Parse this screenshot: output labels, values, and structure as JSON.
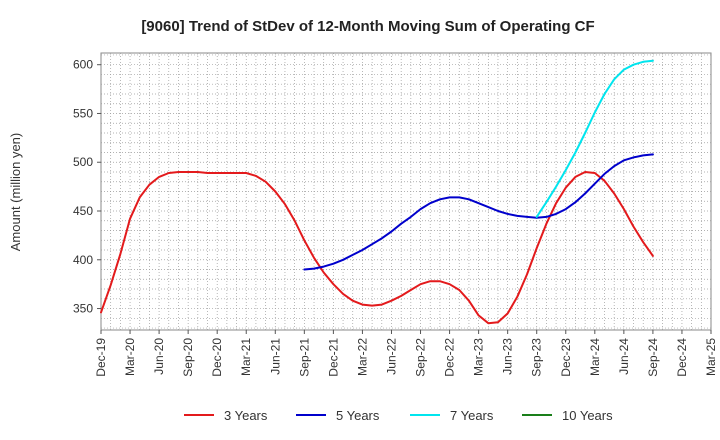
{
  "chart_data": {
    "type": "line",
    "title": "[9060]  Trend of StDev of 12-Month Moving Sum of Operating CF",
    "xlabel": "",
    "ylabel": "Amount (million yen)",
    "ylim": [
      328,
      612
    ],
    "yticks": [
      350,
      400,
      450,
      500,
      550,
      600
    ],
    "grid": true,
    "legend_position": "bottom",
    "x_ticks": [
      "Dec-19",
      "Mar-20",
      "Jun-20",
      "Sep-20",
      "Dec-20",
      "Mar-21",
      "Jun-21",
      "Sep-21",
      "Dec-21",
      "Mar-22",
      "Jun-22",
      "Sep-22",
      "Dec-22",
      "Mar-23",
      "Jun-23",
      "Sep-23",
      "Dec-23",
      "Mar-24",
      "Jun-24",
      "Sep-24",
      "Dec-24",
      "Mar-25"
    ],
    "series": [
      {
        "name": "3 Years",
        "color": "#e31a1c",
        "points": [
          [
            "Dec-19",
            346
          ],
          [
            "Jan-20",
            374
          ],
          [
            "Feb-20",
            406
          ],
          [
            "Mar-20",
            442
          ],
          [
            "Apr-20",
            464
          ],
          [
            "May-20",
            477
          ],
          [
            "Jun-20",
            485
          ],
          [
            "Jul-20",
            489
          ],
          [
            "Aug-20",
            490
          ],
          [
            "Sep-20",
            490
          ],
          [
            "Oct-20",
            490
          ],
          [
            "Nov-20",
            489
          ],
          [
            "Dec-20",
            489
          ],
          [
            "Jan-21",
            489
          ],
          [
            "Feb-21",
            489
          ],
          [
            "Mar-21",
            489
          ],
          [
            "Apr-21",
            486
          ],
          [
            "May-21",
            480
          ],
          [
            "Jun-21",
            470
          ],
          [
            "Jul-21",
            457
          ],
          [
            "Aug-21",
            440
          ],
          [
            "Sep-21",
            420
          ],
          [
            "Oct-21",
            402
          ],
          [
            "Nov-21",
            387
          ],
          [
            "Dec-21",
            375
          ],
          [
            "Jan-22",
            365
          ],
          [
            "Feb-22",
            358
          ],
          [
            "Mar-22",
            354
          ],
          [
            "Apr-22",
            353
          ],
          [
            "May-22",
            354
          ],
          [
            "Jun-22",
            358
          ],
          [
            "Jul-22",
            363
          ],
          [
            "Aug-22",
            369
          ],
          [
            "Sep-22",
            375
          ],
          [
            "Oct-22",
            378
          ],
          [
            "Nov-22",
            378
          ],
          [
            "Dec-22",
            375
          ],
          [
            "Jan-23",
            369
          ],
          [
            "Feb-23",
            358
          ],
          [
            "Mar-23",
            343
          ],
          [
            "Apr-23",
            335
          ],
          [
            "May-23",
            336
          ],
          [
            "Jun-23",
            345
          ],
          [
            "Jul-23",
            362
          ],
          [
            "Aug-23",
            385
          ],
          [
            "Sep-23",
            412
          ],
          [
            "Oct-23",
            437
          ],
          [
            "Nov-23",
            458
          ],
          [
            "Dec-23",
            474
          ],
          [
            "Jan-24",
            485
          ],
          [
            "Feb-24",
            490
          ],
          [
            "Mar-24",
            489
          ],
          [
            "Apr-24",
            481
          ],
          [
            "May-24",
            468
          ],
          [
            "Jun-24",
            452
          ],
          [
            "Jul-24",
            434
          ],
          [
            "Aug-24",
            418
          ],
          [
            "Sep-24",
            404
          ]
        ]
      },
      {
        "name": "5 Years",
        "color": "#0000cc",
        "points": [
          [
            "Sep-21",
            390
          ],
          [
            "Oct-21",
            391
          ],
          [
            "Nov-21",
            393
          ],
          [
            "Dec-21",
            396
          ],
          [
            "Jan-22",
            400
          ],
          [
            "Feb-22",
            405
          ],
          [
            "Mar-22",
            410
          ],
          [
            "Apr-22",
            416
          ],
          [
            "May-22",
            422
          ],
          [
            "Jun-22",
            429
          ],
          [
            "Jul-22",
            437
          ],
          [
            "Aug-22",
            444
          ],
          [
            "Sep-22",
            452
          ],
          [
            "Oct-22",
            458
          ],
          [
            "Nov-22",
            462
          ],
          [
            "Dec-22",
            464
          ],
          [
            "Jan-23",
            464
          ],
          [
            "Feb-23",
            462
          ],
          [
            "Mar-23",
            458
          ],
          [
            "Apr-23",
            454
          ],
          [
            "May-23",
            450
          ],
          [
            "Jun-23",
            447
          ],
          [
            "Jul-23",
            445
          ],
          [
            "Aug-23",
            444
          ],
          [
            "Sep-23",
            443
          ],
          [
            "Oct-23",
            444
          ],
          [
            "Nov-23",
            447
          ],
          [
            "Dec-23",
            452
          ],
          [
            "Jan-24",
            459
          ],
          [
            "Feb-24",
            468
          ],
          [
            "Mar-24",
            478
          ],
          [
            "Apr-24",
            488
          ],
          [
            "May-24",
            496
          ],
          [
            "Jun-24",
            502
          ],
          [
            "Jul-24",
            505
          ],
          [
            "Aug-24",
            507
          ],
          [
            "Sep-24",
            508
          ]
        ]
      },
      {
        "name": "7 Years",
        "color": "#00e5ee",
        "points": [
          [
            "Sep-23",
            444
          ],
          [
            "Oct-23",
            459
          ],
          [
            "Nov-23",
            475
          ],
          [
            "Dec-23",
            492
          ],
          [
            "Jan-24",
            510
          ],
          [
            "Feb-24",
            530
          ],
          [
            "Mar-24",
            551
          ],
          [
            "Apr-24",
            570
          ],
          [
            "May-24",
            585
          ],
          [
            "Jun-24",
            595
          ],
          [
            "Jul-24",
            600
          ],
          [
            "Aug-24",
            603
          ],
          [
            "Sep-24",
            604
          ]
        ]
      },
      {
        "name": "10 Years",
        "color": "#1a7f1a",
        "points": []
      }
    ]
  }
}
